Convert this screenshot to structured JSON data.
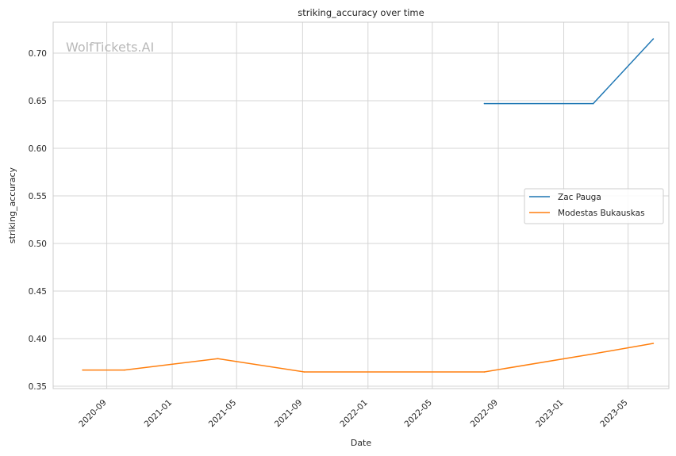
{
  "chart_data": {
    "type": "line",
    "title": "striking_accuracy over time",
    "xlabel": "Date",
    "ylabel": "striking_accuracy",
    "watermark": "WolfTickets.AI",
    "x_ticks": [
      "2020-09",
      "2021-01",
      "2021-05",
      "2021-09",
      "2022-01",
      "2022-05",
      "2022-09",
      "2023-01",
      "2023-05"
    ],
    "y_ticks": [
      "0.35",
      "0.40",
      "0.45",
      "0.50",
      "0.55",
      "0.60",
      "0.65",
      "0.70"
    ],
    "xlim": [
      "2020-05-24",
      "2023-07-16"
    ],
    "ylim": [
      0.3475,
      0.7325
    ],
    "grid": true,
    "legend_position": "center-right",
    "series": [
      {
        "name": "Zac Pauga",
        "color": "#1f77b4",
        "points": [
          {
            "x": "2022-08-06",
            "y": 0.647
          },
          {
            "x": "2023-02-25",
            "y": 0.647
          },
          {
            "x": "2023-06-17",
            "y": 0.715
          }
        ]
      },
      {
        "name": "Modestas Bukauskas",
        "color": "#ff7f0e",
        "points": [
          {
            "x": "2020-07-18",
            "y": 0.367
          },
          {
            "x": "2020-10-04",
            "y": 0.367
          },
          {
            "x": "2021-03-27",
            "y": 0.379
          },
          {
            "x": "2021-09-04",
            "y": 0.365
          },
          {
            "x": "2022-08-06",
            "y": 0.365
          },
          {
            "x": "2023-02-25",
            "y": 0.384
          },
          {
            "x": "2023-06-17",
            "y": 0.395
          }
        ]
      }
    ]
  }
}
